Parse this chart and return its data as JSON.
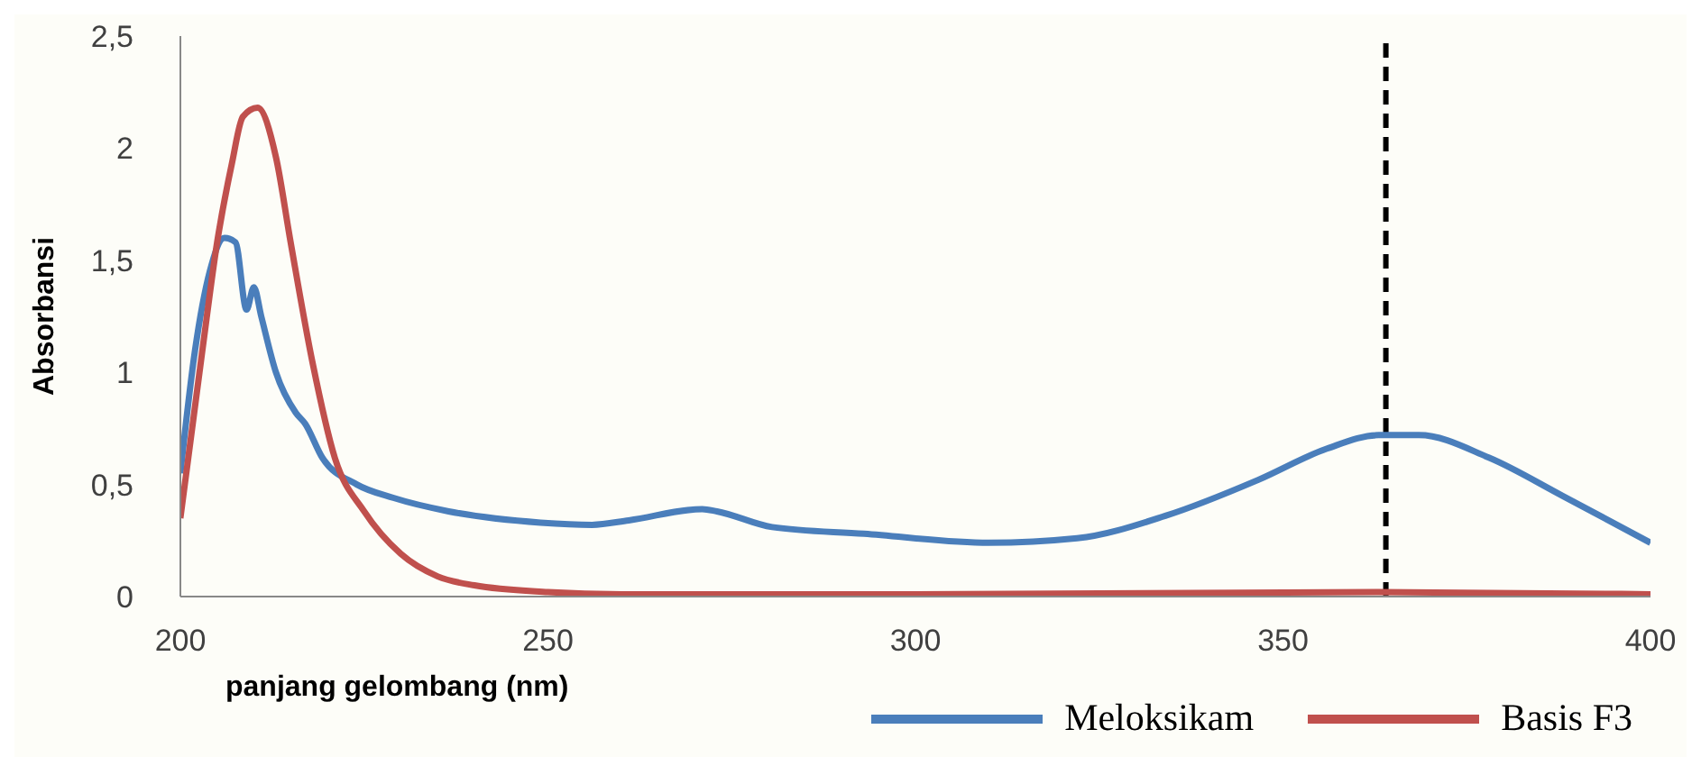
{
  "chart_data": {
    "type": "line",
    "xlabel": "panjang gelombang (nm)",
    "ylabel": "Absorbansi",
    "xlim": [
      200,
      400
    ],
    "xticks": [
      200,
      250,
      300,
      350,
      400
    ],
    "ylim": [
      0,
      2.5
    ],
    "yticks": [
      0,
      {
        "value": 0.5,
        "label": "0,5"
      },
      1,
      {
        "value": 1.5,
        "label": "1,5"
      },
      2,
      {
        "value": 2.5,
        "label": "2,5"
      }
    ],
    "grid": false,
    "legend": "bottom right",
    "marker": "none",
    "line_style": "solid",
    "ref_lines": [
      {
        "axis": "x",
        "value": 364,
        "color": "#000000",
        "line_style": "dashed"
      }
    ],
    "series": [
      {
        "name": "Meloksikam",
        "color": "#4a7ebb",
        "x": [
          200,
          202,
          204,
          206,
          207.5,
          209,
          210,
          211,
          213,
          215.7,
          217,
          219.3,
          224,
          229,
          236.5,
          249,
          256,
          261,
          271,
          273,
          280.5,
          293,
          310,
          322,
          334,
          346.6,
          356,
          363,
          368.5,
          378,
          388,
          400
        ],
        "values": [
          0.55,
          1.1,
          1.45,
          1.6,
          1.58,
          1.28,
          1.38,
          1.25,
          1.0,
          0.82,
          0.77,
          0.62,
          0.5,
          0.44,
          0.38,
          0.33,
          0.32,
          0.34,
          0.39,
          0.38,
          0.31,
          0.28,
          0.24,
          0.26,
          0.36,
          0.52,
          0.66,
          0.72,
          0.72,
          0.62,
          0.45,
          0.24
        ]
      },
      {
        "name": "Basis F3",
        "color": "#c0504d",
        "x": [
          200,
          203,
          205,
          207,
          208.5,
          210.5,
          213,
          215,
          218,
          221,
          225,
          230,
          235,
          240,
          250,
          260,
          300,
          363,
          400
        ],
        "values": [
          0.35,
          1.1,
          1.58,
          1.93,
          2.14,
          2.18,
          1.96,
          1.58,
          1.04,
          0.62,
          0.38,
          0.19,
          0.09,
          0.05,
          0.02,
          0.01,
          0.01,
          0.02,
          0.01
        ]
      }
    ]
  }
}
